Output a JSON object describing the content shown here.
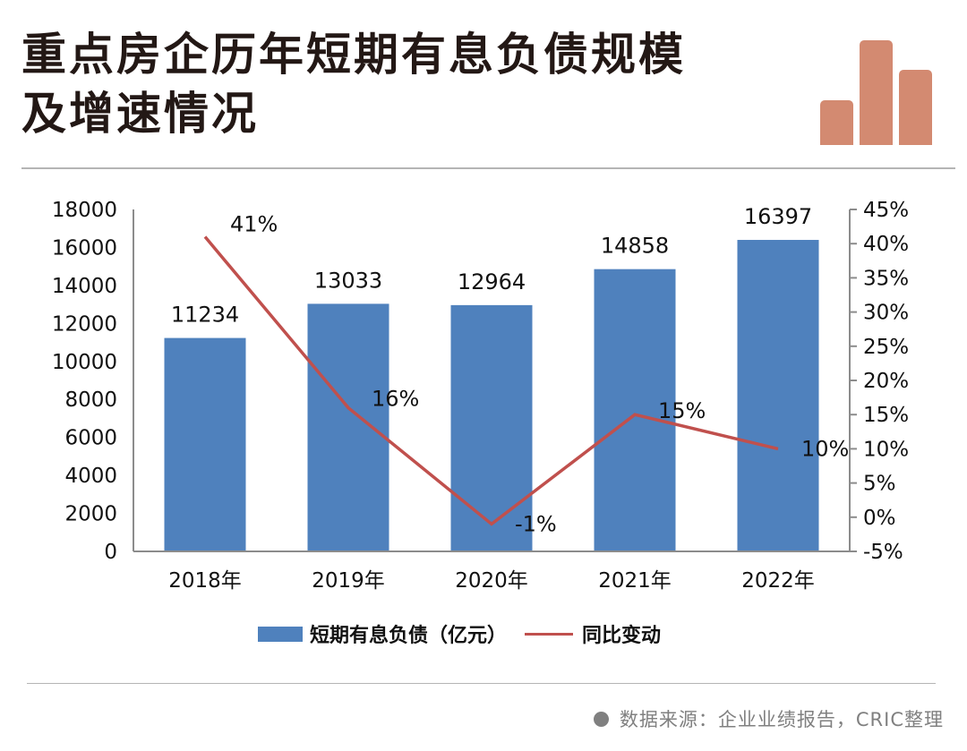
{
  "header": {
    "title_line1": "重点房企历年短期有息负债规模",
    "title_line2": "及增速情况",
    "logo_icon": "bar-chart-icon",
    "logo_color": "#d38a71"
  },
  "legend": {
    "bar_label": "短期有息负债（亿元）",
    "line_label": "同比变动"
  },
  "footer": {
    "source": "数据来源：企业业绩报告，CRIC整理"
  },
  "colors": {
    "bar": "#4f81bd",
    "line": "#c0504d",
    "axis": "#8c8c8c"
  },
  "chart_data": {
    "type": "bar",
    "title": "重点房企历年短期有息负债规模及增速情况",
    "categories": [
      "2018年",
      "2019年",
      "2020年",
      "2021年",
      "2022年"
    ],
    "series": [
      {
        "name": "短期有息负债（亿元）",
        "type": "bar",
        "axis": "left",
        "values": [
          11234,
          13033,
          12964,
          14858,
          16397
        ],
        "labels": [
          "11234",
          "13033",
          "12964",
          "14858",
          "16397"
        ]
      },
      {
        "name": "同比变动",
        "type": "line",
        "axis": "right",
        "values": [
          41,
          16,
          -1,
          15,
          10
        ],
        "labels": [
          "41%",
          "16%",
          "-1%",
          "15%",
          "10%"
        ]
      }
    ],
    "left_axis": {
      "ylim": [
        0,
        18000
      ],
      "ticks": [
        "0",
        "2000",
        "4000",
        "6000",
        "8000",
        "10000",
        "12000",
        "14000",
        "16000",
        "18000"
      ]
    },
    "right_axis": {
      "ylim": [
        -5,
        45
      ],
      "unit": "%",
      "ticks": [
        "-5%",
        "0%",
        "5%",
        "10%",
        "15%",
        "20%",
        "25%",
        "30%",
        "35%",
        "40%",
        "45%"
      ]
    },
    "xlabel": "",
    "ylabel": "",
    "grid": false,
    "legend_position": "bottom"
  }
}
